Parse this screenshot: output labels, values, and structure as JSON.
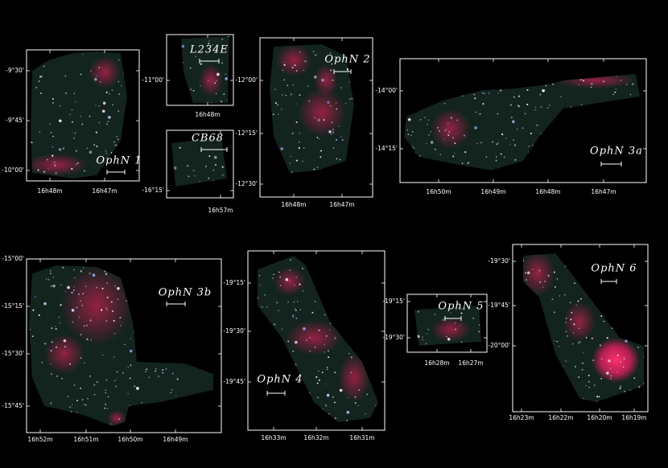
{
  "panels": [
    {
      "label": "OphN 1",
      "yticks": [
        "-9°30'",
        "-9°45'",
        "-10°00'"
      ],
      "xticks": [
        "16h48m",
        "16h47m"
      ]
    },
    {
      "label": "L234E",
      "yticks": [
        "-11°00'"
      ],
      "xticks": [
        "16h48m"
      ]
    },
    {
      "label": "CB68",
      "yticks": [
        "-16°15'"
      ],
      "xticks": [
        "16h57m"
      ]
    },
    {
      "label": "OphN 2",
      "yticks": [
        "-12°00'",
        "-12°15'",
        "-12°30'"
      ],
      "xticks": [
        "16h48m",
        "16h47m"
      ]
    },
    {
      "label": "OphN 3a",
      "yticks": [
        "-14°00'",
        "-14°15'"
      ],
      "xticks": [
        "16h50m",
        "16h49m",
        "16h48m",
        "16h47m"
      ]
    },
    {
      "label": "OphN 3b",
      "yticks": [
        "-15°00'",
        "-15°15'",
        "-15°30'",
        "-15°45'"
      ],
      "xticks": [
        "16h52m",
        "16h51m",
        "16h50m",
        "16h49m"
      ]
    },
    {
      "label": "OphN 4",
      "yticks": [
        "-19°15'",
        "-19°30'",
        "-19°45'"
      ],
      "xticks": [
        "16h33m",
        "16h32m",
        "16h31m"
      ]
    },
    {
      "label": "OphN 5",
      "yticks": [
        "-19°15'",
        "-19°30'"
      ],
      "xticks": [
        "16h28m",
        "16h27m"
      ]
    },
    {
      "label": "OphN 6",
      "yticks": [
        "-19°30'",
        "-19°45'",
        "-20°00'"
      ],
      "xticks": [
        "16h23m",
        "16h22m",
        "16h20m",
        "16h19m"
      ]
    }
  ]
}
